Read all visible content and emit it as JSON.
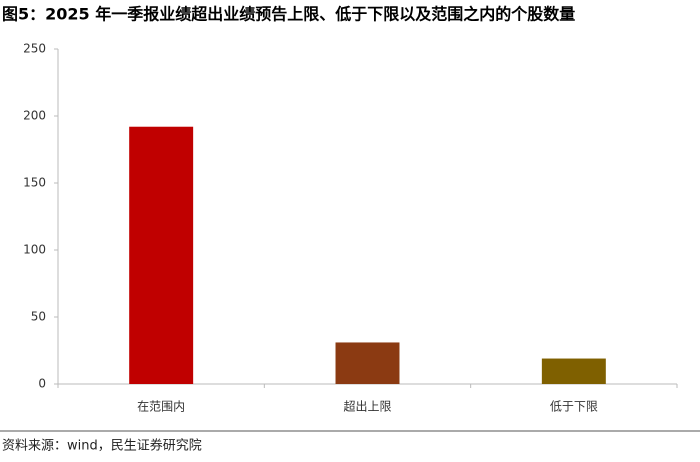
{
  "chart_data": {
    "type": "bar",
    "title": "图5：2025 年一季报业绩超出业绩预告上限、低于下限以及范围之内的个股数量",
    "categories": [
      "在范围内",
      "超出上限",
      "低于下限"
    ],
    "values": [
      192,
      31,
      19
    ],
    "colors": [
      "#c00000",
      "#8b3a12",
      "#7f6000"
    ],
    "ylim": [
      0,
      250
    ],
    "yticks": [
      0,
      50,
      100,
      150,
      200,
      250
    ],
    "grid": false,
    "source": "资料来源：wind，民生证券研究院"
  }
}
